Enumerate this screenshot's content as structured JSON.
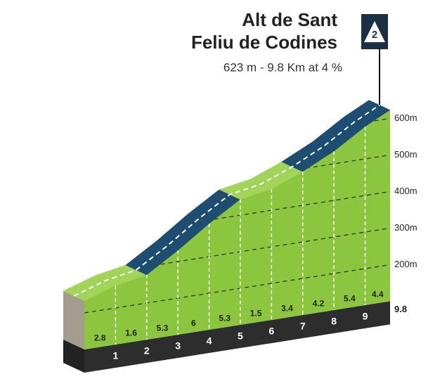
{
  "chart_data": {
    "type": "climb-profile",
    "title": [
      "Alt de Sant",
      "Feliu de Codines"
    ],
    "subtitle": "623 m - 9.8 Km at 4 %",
    "category": "2",
    "x": [
      0,
      1,
      2,
      3,
      4,
      5,
      6,
      7,
      8,
      9,
      9.8
    ],
    "elevation": [
      233,
      261,
      277,
      330,
      390,
      443,
      458,
      492,
      534,
      588,
      623
    ],
    "xlim": [
      0,
      9.8
    ],
    "xticks": [
      1,
      2,
      3,
      4,
      5,
      6,
      7,
      8,
      9,
      9.8
    ],
    "gradients": [
      2.8,
      1.6,
      5.3,
      6.0,
      5.3,
      1.5,
      3.4,
      4.2,
      5.4,
      4.4
    ],
    "segment_colors": [
      "#a2d45a",
      "#a2d45a",
      "#1d4e72",
      "#1d4e72",
      "#1d4e72",
      "#a2d45a",
      "#a2d45a",
      "#1d4e72",
      "#1d4e72",
      "#1d4e72"
    ],
    "face_color": "#8cc63f",
    "ylim": [
      100,
      650
    ],
    "yticks": [
      {
        "value": 200,
        "label": "200m"
      },
      {
        "value": 300,
        "label": "300m"
      },
      {
        "value": 400,
        "label": "400m"
      },
      {
        "value": 500,
        "label": "500m"
      },
      {
        "value": 600,
        "label": "600m"
      }
    ],
    "grid": true
  }
}
